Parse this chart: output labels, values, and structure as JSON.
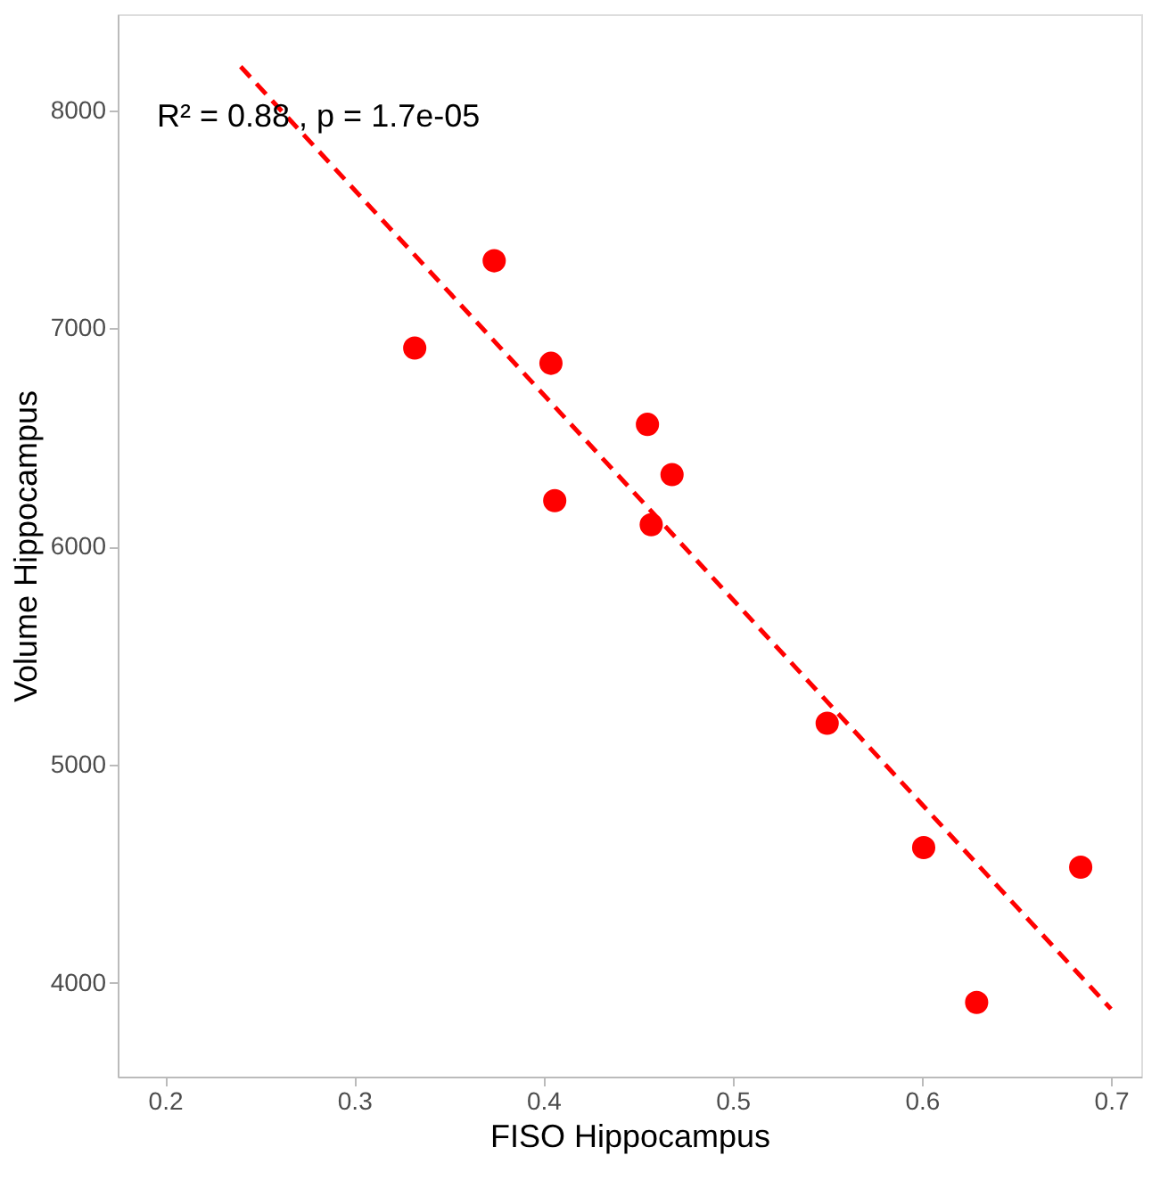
{
  "chart_data": {
    "type": "scatter",
    "xlabel": "FISO Hippocampus",
    "ylabel": "Volume Hippocampus",
    "annotations": [
      "R² = 0.88 , p = 1.7e-05"
    ],
    "series": [
      {
        "color": "#ff0000",
        "marker": "circle",
        "x": [
          0.332,
          0.374,
          0.404,
          0.406,
          0.455,
          0.457,
          0.468,
          0.55,
          0.601,
          0.629,
          0.684
        ],
        "values": [
          6910,
          7310,
          6840,
          6210,
          6560,
          6100,
          6330,
          5190,
          4620,
          3910,
          4530
        ]
      },
      {
        "type": "line",
        "color": "#ff0000",
        "line_style": "dashed",
        "x": [
          0.24,
          0.7
        ],
        "values": [
          8200,
          3880
        ]
      }
    ],
    "xlim": [
      0.175,
      0.716
    ],
    "ylim": [
      3570,
      8440
    ],
    "xticks": [
      0.2,
      0.3,
      0.4,
      0.5,
      0.6,
      0.7
    ],
    "yticks": [
      4000,
      5000,
      6000,
      7000,
      8000
    ],
    "grid": false
  }
}
